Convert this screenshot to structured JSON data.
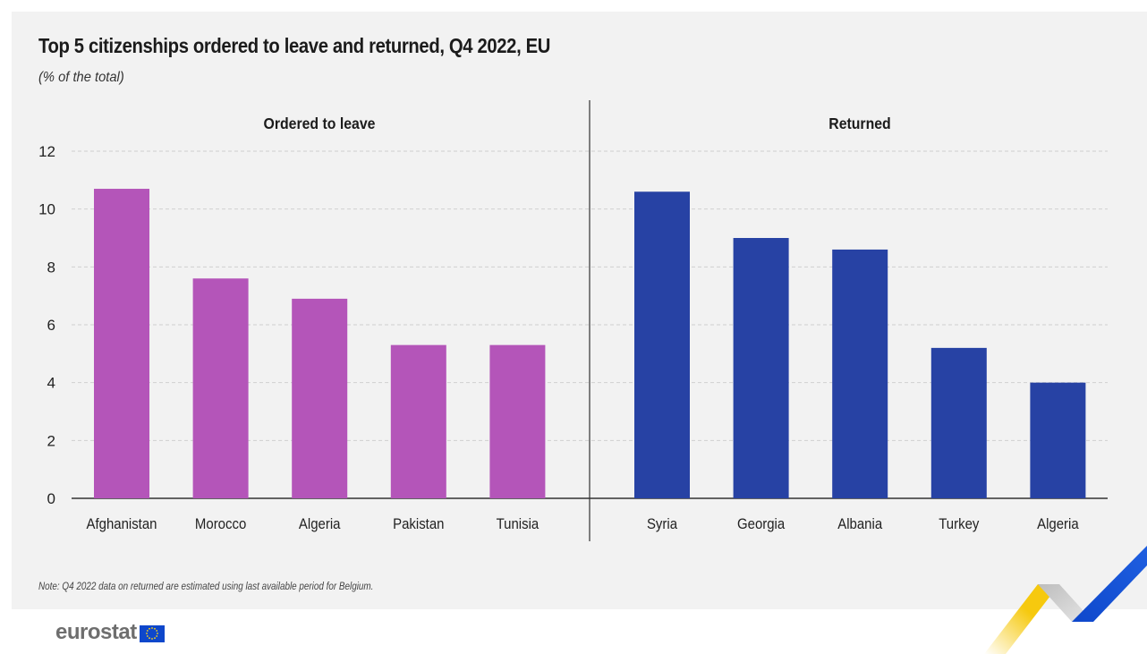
{
  "header": {
    "title": "Top 5 citizenships ordered to leave and returned, Q4 2022, EU",
    "subtitle": "(% of the total)"
  },
  "footer": {
    "note": "Note: Q4 2022 data on returned are estimated using last available period for Belgium.",
    "logo_text": "eurostat"
  },
  "colors": {
    "ordered": "#b455b9",
    "returned": "#2742a4",
    "accent_yellow": "#f6c90e",
    "accent_blue": "#0e47cb"
  },
  "chart_data": {
    "type": "bar",
    "title": "Top 5 citizenships ordered to leave and returned, Q4 2022, EU",
    "subtitle": "(% of the total)",
    "ylim": [
      0,
      12
    ],
    "yticks": [
      0,
      2,
      4,
      6,
      8,
      10,
      12
    ],
    "grid": true,
    "panels": [
      {
        "name": "Ordered to leave",
        "categories": [
          "Afghanistan",
          "Morocco",
          "Algeria",
          "Pakistan",
          "Tunisia"
        ],
        "values": [
          10.7,
          7.6,
          6.9,
          5.3,
          5.3
        ]
      },
      {
        "name": "Returned",
        "categories": [
          "Syria",
          "Georgia",
          "Albania",
          "Turkey",
          "Algeria"
        ],
        "values": [
          10.6,
          9.0,
          8.6,
          5.2,
          4.0
        ]
      }
    ]
  }
}
